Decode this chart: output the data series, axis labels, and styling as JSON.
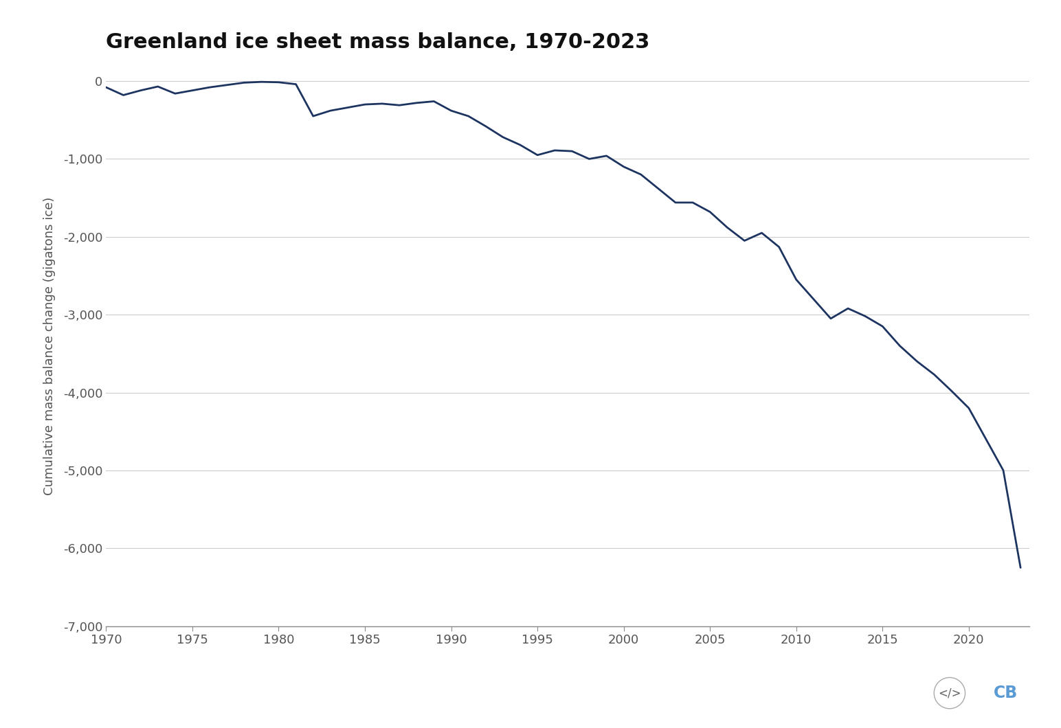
{
  "title": "Greenland ice sheet mass balance, 1970-2023",
  "ylabel": "Cumulative mass balance change (gigatons ice)",
  "line_color": "#1d3461",
  "line_width": 2.0,
  "background_color": "#ffffff",
  "grid_color": "#cccccc",
  "title_fontsize": 22,
  "label_fontsize": 13,
  "tick_fontsize": 13,
  "xlim": [
    1970,
    2023.5
  ],
  "ylim": [
    -7000,
    200
  ],
  "yticks": [
    0,
    -1000,
    -2000,
    -3000,
    -4000,
    -5000,
    -6000,
    -7000
  ],
  "xticks": [
    1970,
    1975,
    1980,
    1985,
    1990,
    1995,
    2000,
    2005,
    2010,
    2015,
    2020
  ],
  "years": [
    1970,
    1971,
    1972,
    1973,
    1974,
    1975,
    1976,
    1977,
    1978,
    1979,
    1980,
    1981,
    1982,
    1983,
    1984,
    1985,
    1986,
    1987,
    1988,
    1989,
    1990,
    1991,
    1992,
    1993,
    1994,
    1995,
    1996,
    1997,
    1998,
    1999,
    2000,
    2001,
    2002,
    2003,
    2004,
    2005,
    2006,
    2007,
    2008,
    2009,
    2010,
    2011,
    2012,
    2013,
    2014,
    2015,
    2016,
    2017,
    2018,
    2019,
    2020,
    2021,
    2022,
    2023
  ],
  "values": [
    -80,
    -180,
    -120,
    -70,
    -160,
    -120,
    -80,
    -50,
    -20,
    -10,
    -15,
    -40,
    -450,
    -380,
    -340,
    -300,
    -290,
    -310,
    -280,
    -260,
    -380,
    -450,
    -580,
    -720,
    -820,
    -950,
    -890,
    -900,
    -1000,
    -960,
    -1100,
    -1200,
    -1380,
    -1560,
    -1560,
    -1680,
    -1880,
    -2050,
    -1950,
    -2130,
    -2550,
    -2800,
    -3050,
    -2920,
    -3020,
    -3150,
    -3400,
    -3600,
    -3770,
    -3980,
    -4200,
    -4600,
    -5000,
    -6250
  ]
}
